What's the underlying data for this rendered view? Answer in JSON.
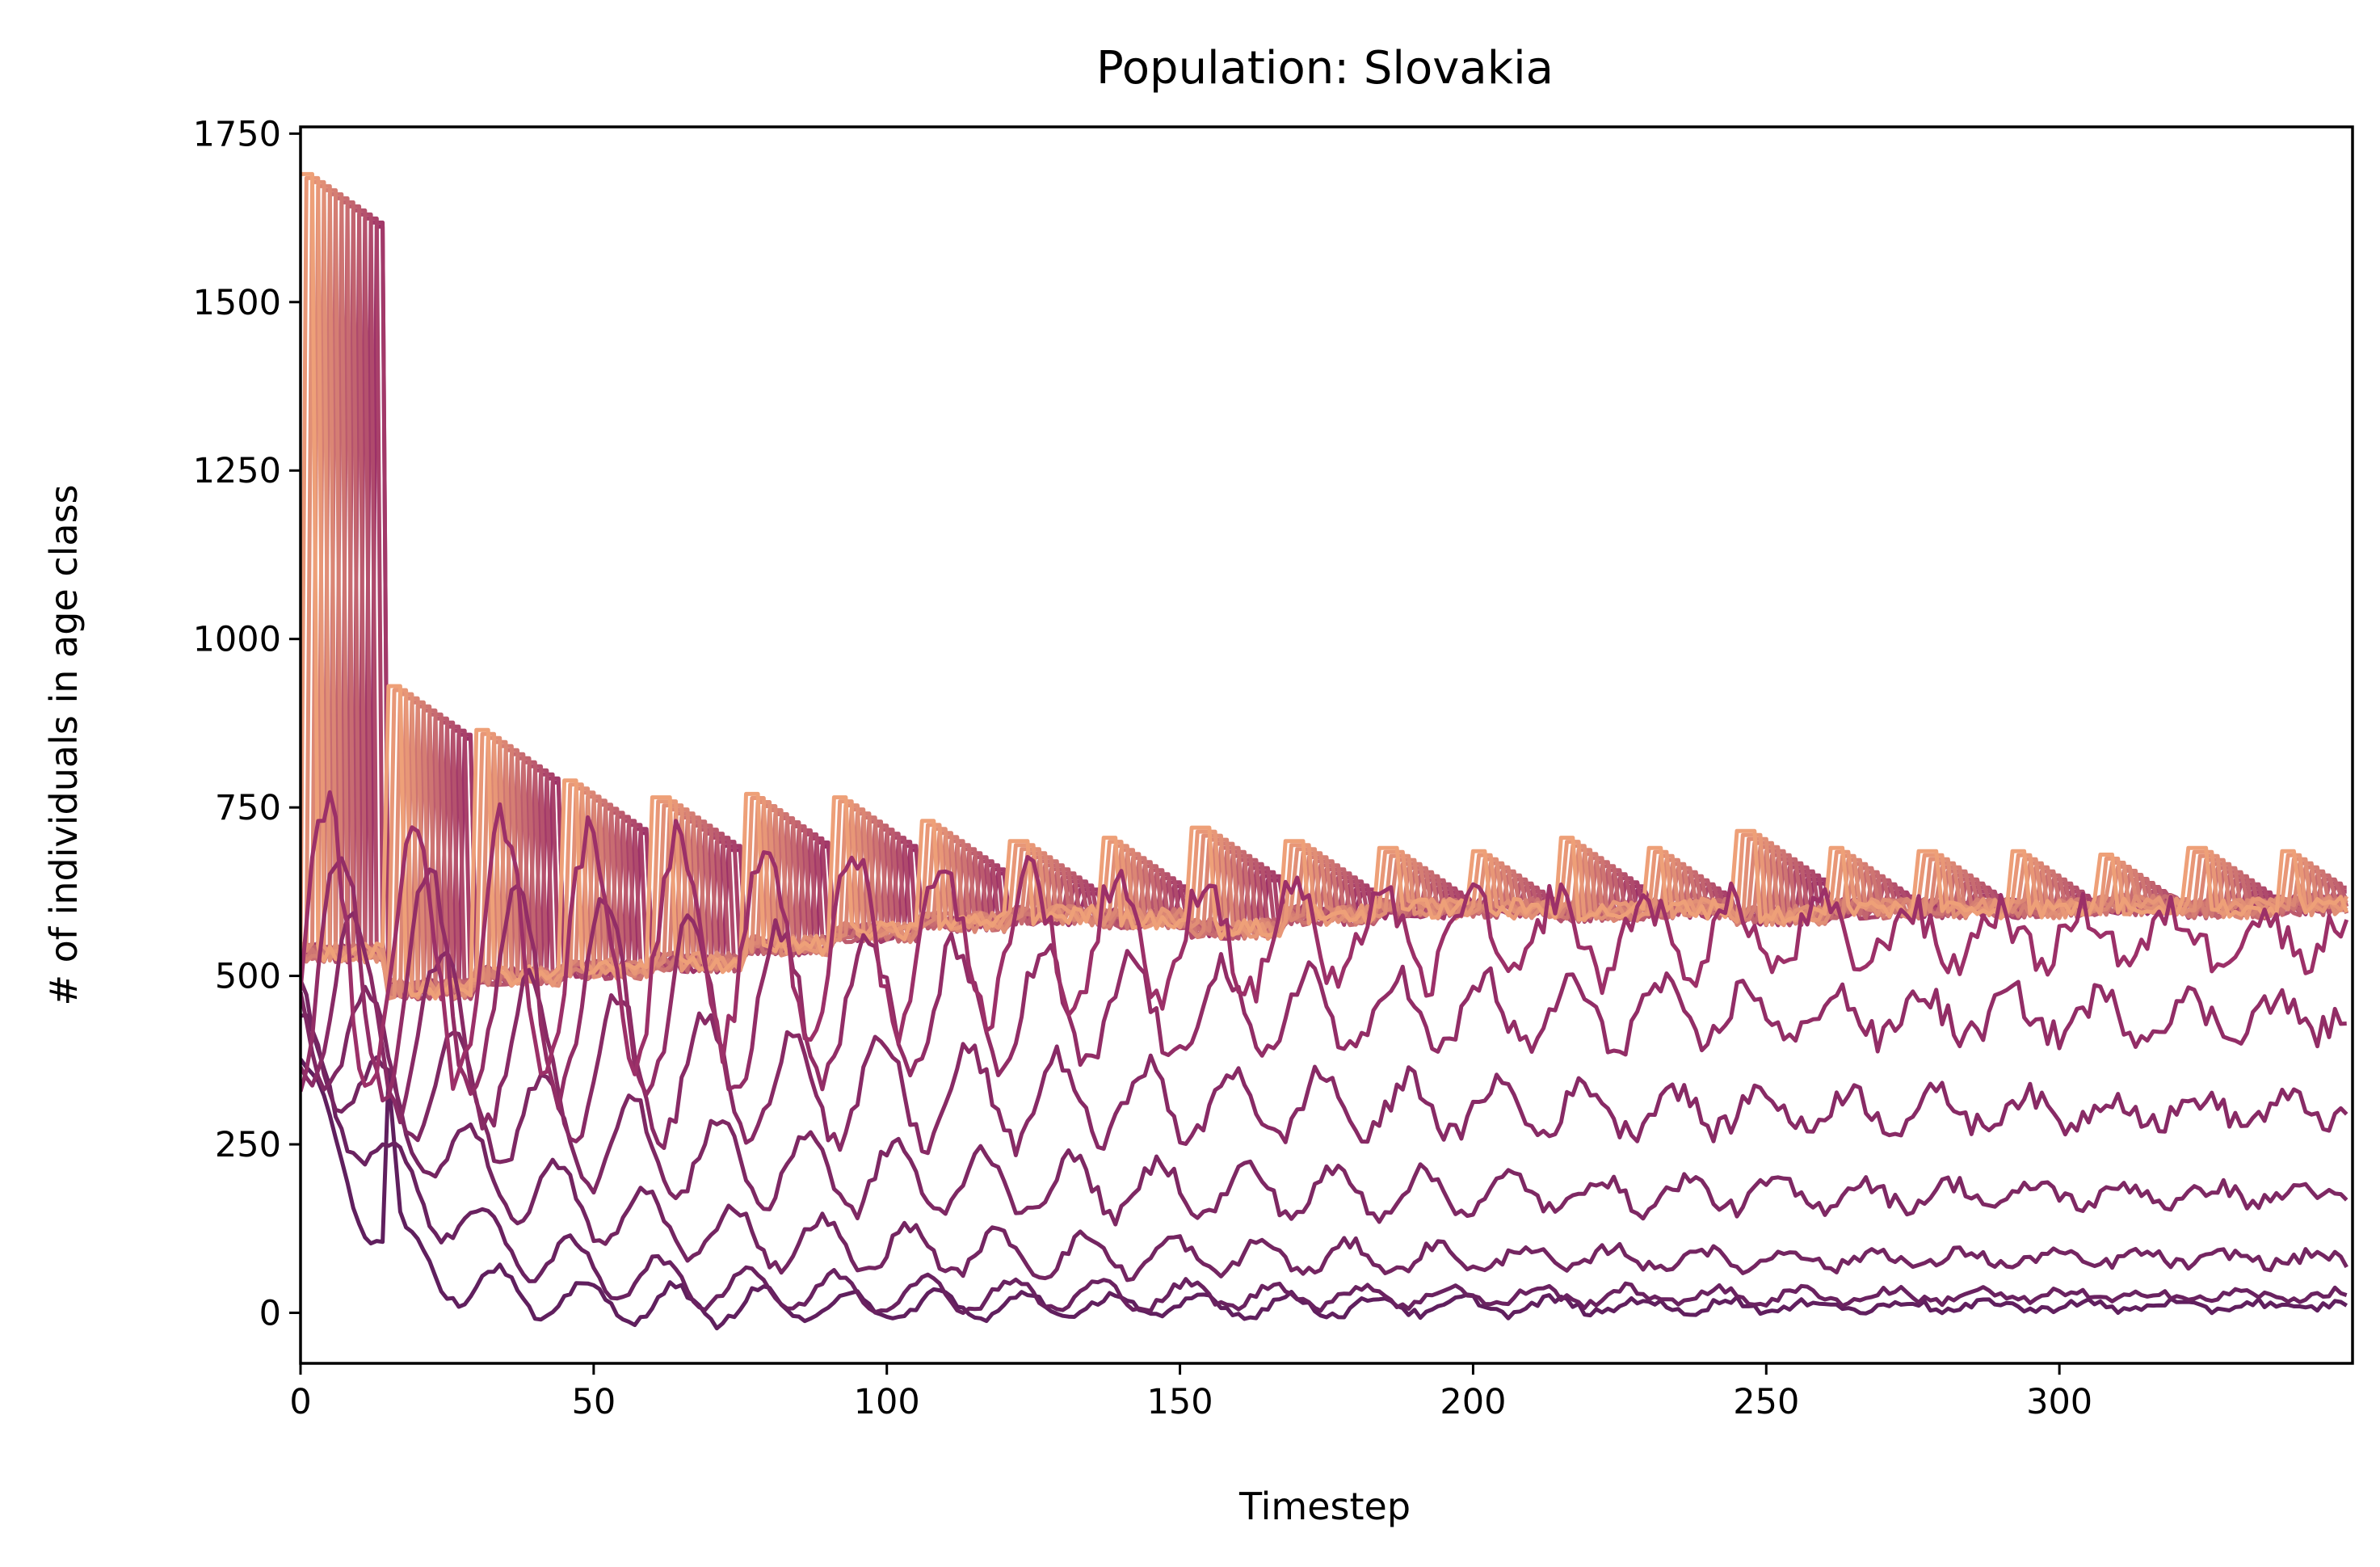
{
  "chart_data": {
    "type": "line",
    "title": "Population: Slovakia",
    "xlabel": "Timestep",
    "ylabel": "# of individuals in age class",
    "xlim": [
      0,
      350
    ],
    "ylim": [
      -75,
      1760
    ],
    "xticks": [
      0,
      50,
      100,
      150,
      200,
      250,
      300
    ],
    "yticks": [
      0,
      250,
      500,
      750,
      1000,
      1250,
      1500,
      1750
    ],
    "grid": false,
    "legend": "none",
    "colormap": "flare (dark purple to orange)",
    "colors": {
      "dark": "#601f5e",
      "mid": "#9c3068",
      "light": "#eea078"
    },
    "lower_series_levels": [
      10,
      25,
      80,
      175,
      300,
      440,
      560
    ],
    "recruit_pulses": [
      {
        "start": 0,
        "high": 1690,
        "low": 535
      },
      {
        "start": 15,
        "high": 930,
        "low": 480
      },
      {
        "start": 30,
        "high": 865,
        "low": 500
      },
      {
        "start": 45,
        "high": 790,
        "low": 510
      },
      {
        "start": 60,
        "high": 765,
        "low": 520
      },
      {
        "start": 76,
        "high": 770,
        "low": 545
      },
      {
        "start": 91,
        "high": 765,
        "low": 565
      },
      {
        "start": 106,
        "high": 730,
        "low": 580
      },
      {
        "start": 121,
        "high": 700,
        "low": 590
      },
      {
        "start": 137,
        "high": 705,
        "low": 585
      },
      {
        "start": 152,
        "high": 720,
        "low": 570
      },
      {
        "start": 168,
        "high": 700,
        "low": 590
      },
      {
        "start": 184,
        "high": 690,
        "low": 600
      },
      {
        "start": 200,
        "high": 685,
        "low": 600
      },
      {
        "start": 215,
        "high": 705,
        "low": 595
      },
      {
        "start": 230,
        "high": 690,
        "low": 600
      },
      {
        "start": 245,
        "high": 715,
        "low": 590
      },
      {
        "start": 261,
        "high": 690,
        "low": 600
      },
      {
        "start": 276,
        "high": 685,
        "low": 600
      },
      {
        "start": 292,
        "high": 685,
        "low": 600
      },
      {
        "start": 307,
        "high": 680,
        "low": 605
      },
      {
        "start": 322,
        "high": 690,
        "low": 600
      },
      {
        "start": 338,
        "high": 685,
        "low": 605
      }
    ]
  }
}
